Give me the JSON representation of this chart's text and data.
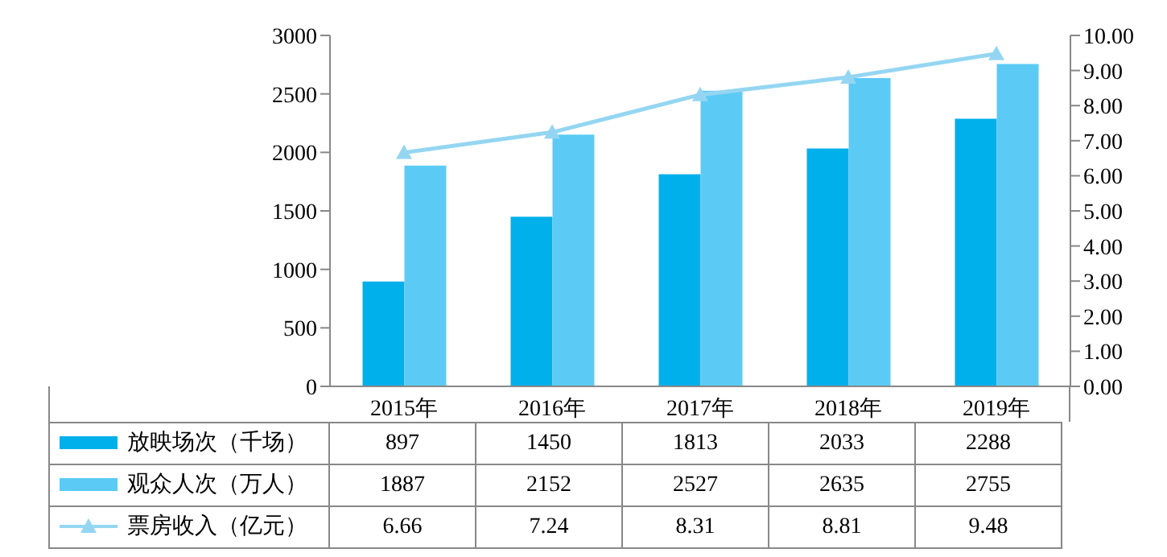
{
  "chart_data": {
    "type": "bar",
    "categories": [
      "2015年",
      "2016年",
      "2017年",
      "2018年",
      "2019年"
    ],
    "series": [
      {
        "name": "放映场次（千场）",
        "color": "#00b0eb",
        "values": [
          897,
          1450,
          1813,
          2033,
          2288
        ]
      },
      {
        "name": "观众人次（万人）",
        "color": "#5bcbf5",
        "values": [
          1887,
          2152,
          2527,
          2635,
          2755
        ]
      },
      {
        "name": "票房收入（亿元）",
        "color": "#94d6f2",
        "type": "line",
        "axis": "y2",
        "marker": "triangle",
        "values": [
          6.66,
          7.24,
          8.31,
          8.81,
          9.48
        ]
      }
    ],
    "ylim": [
      0,
      3000
    ],
    "yticks": [
      0,
      500,
      1000,
      1500,
      2000,
      2500,
      3000
    ],
    "y2lim": [
      0,
      10
    ],
    "y2ticks": [
      {
        "value": 0,
        "label": "0.00"
      },
      {
        "value": 1,
        "label": "1.00"
      },
      {
        "value": 2,
        "label": "2.00"
      },
      {
        "value": 3,
        "label": "3.00"
      },
      {
        "value": 4,
        "label": "4.00"
      },
      {
        "value": 5,
        "label": "5.00"
      },
      {
        "value": 6,
        "label": "6.00"
      },
      {
        "value": 7,
        "label": "7.00"
      },
      {
        "value": 8,
        "label": "8.00"
      },
      {
        "value": 9,
        "label": "9.00"
      },
      {
        "value": 10,
        "label": "10.00"
      }
    ],
    "data_labels": true,
    "legend": "bottom left"
  }
}
